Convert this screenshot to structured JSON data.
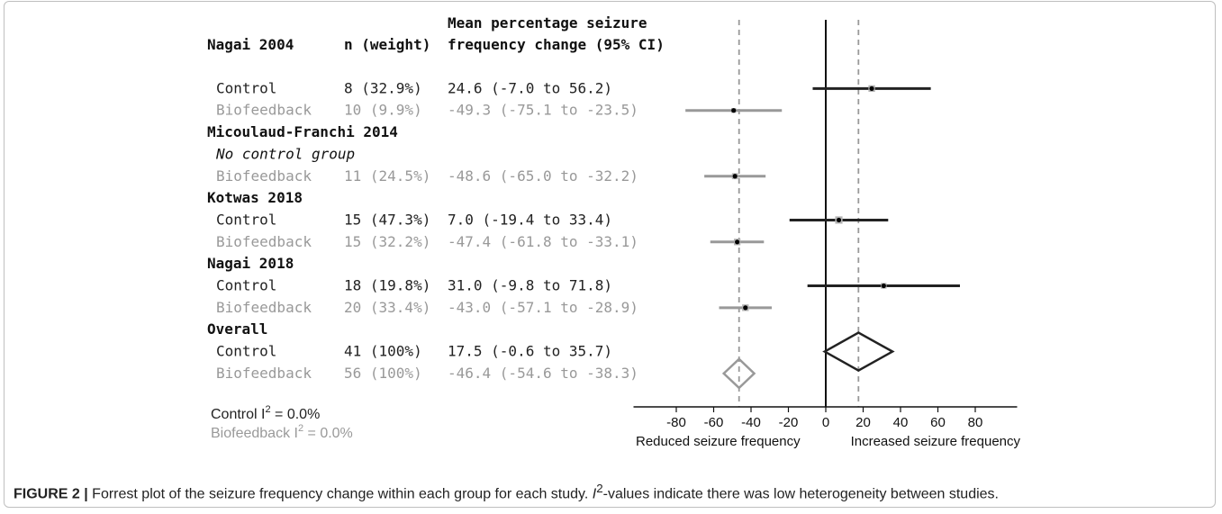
{
  "figure": {
    "label": "FIGURE 2 |",
    "caption_pre": "Forrest plot of the seizure frequency change within each group for each study. ",
    "caption_sym": "I",
    "caption_sup": "2",
    "caption_post": "-values indicate there was low heterogeneity between studies."
  },
  "header": {
    "study_col": "Nagai 2004",
    "n_col": "n (weight)",
    "effect_line1": "Mean percentage seizure",
    "effect_line2": "frequency change (95% CI)"
  },
  "colors": {
    "control": "#222222",
    "biofeedback": "#999999",
    "ref_line": "#999999",
    "axis": "#111111"
  },
  "heterogeneity": {
    "control_label": "Control I",
    "control_value": " = 0.0%",
    "biofeedback_label": "Biofeedback I",
    "biofeedback_value": " = 0.0%",
    "sup": "2"
  },
  "chart_data": {
    "type": "forest",
    "xlim": [
      -100,
      100
    ],
    "xticks": [
      -80,
      -60,
      -40,
      -20,
      0,
      20,
      40,
      60,
      80
    ],
    "reference_lines": [
      0,
      -46.4,
      17.5
    ],
    "xlabel_left": "Reduced seizure frequency",
    "xlabel_right": "Increased seizure frequency",
    "rows": [
      {
        "kind": "heading",
        "text": "Nagai 2004",
        "is_header_row": true
      },
      {
        "kind": "data",
        "group": "control",
        "label": "Control",
        "n": "8  (32.9%)",
        "effect": "24.6 (-7.0 to 56.2)",
        "mean": 24.6,
        "lo": -7.0,
        "hi": 56.2,
        "weight": 32.9
      },
      {
        "kind": "data",
        "group": "biofeedback",
        "label": "Biofeedback",
        "n": "10  (9.9%)",
        "effect": "-49.3 (-75.1 to -23.5)",
        "mean": -49.3,
        "lo": -75.1,
        "hi": -23.5,
        "weight": 9.9
      },
      {
        "kind": "heading",
        "text": "Micoulaud-Franchi 2014"
      },
      {
        "kind": "note",
        "text": "No control group"
      },
      {
        "kind": "data",
        "group": "biofeedback",
        "label": "Biofeedback",
        "n": "11 (24.5%)",
        "effect": "-48.6 (-65.0 to -32.2)",
        "mean": -48.6,
        "lo": -65.0,
        "hi": -32.2,
        "weight": 24.5
      },
      {
        "kind": "heading",
        "text": "Kotwas 2018"
      },
      {
        "kind": "data",
        "group": "control",
        "label": "Control",
        "n": "15 (47.3%)",
        "effect": "7.0 (-19.4 to 33.4)",
        "mean": 7.0,
        "lo": -19.4,
        "hi": 33.4,
        "weight": 47.3
      },
      {
        "kind": "data",
        "group": "biofeedback",
        "label": "Biofeedback",
        "n": "15 (32.2%)",
        "effect": "-47.4 (-61.8 to -33.1)",
        "mean": -47.4,
        "lo": -61.8,
        "hi": -33.1,
        "weight": 32.2
      },
      {
        "kind": "heading",
        "text": "Nagai 2018"
      },
      {
        "kind": "data",
        "group": "control",
        "label": "Control",
        "n": "18 (19.8%)",
        "effect": "31.0 (-9.8 to 71.8)",
        "mean": 31.0,
        "lo": -9.8,
        "hi": 71.8,
        "weight": 19.8
      },
      {
        "kind": "data",
        "group": "biofeedback",
        "label": "Biofeedback",
        "n": "20 (33.4%)",
        "effect": "-43.0 (-57.1 to -28.9)",
        "mean": -43.0,
        "lo": -57.1,
        "hi": -28.9,
        "weight": 33.4
      },
      {
        "kind": "heading",
        "text": "Overall"
      },
      {
        "kind": "summary",
        "group": "control",
        "label": "Control",
        "n": "41  (100%)",
        "effect": "17.5 (-0.6 to 35.7)",
        "mean": 17.5,
        "lo": -0.6,
        "hi": 35.7
      },
      {
        "kind": "summary",
        "group": "biofeedback",
        "label": "Biofeedback",
        "n": "56  (100%)",
        "effect": "-46.4 (-54.6 to -38.3)",
        "mean": -46.4,
        "lo": -54.6,
        "hi": -38.3
      }
    ]
  }
}
